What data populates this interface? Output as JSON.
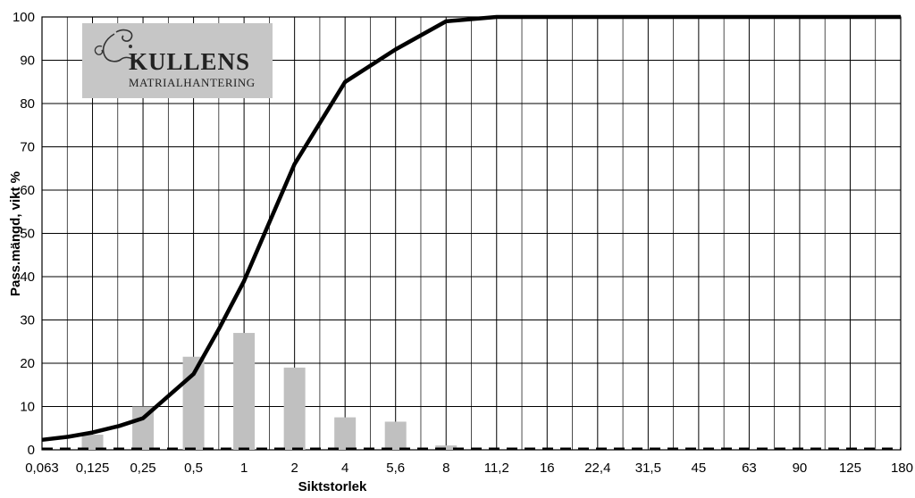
{
  "chart_data": {
    "type": "line",
    "xlabel": "Siktstorlek",
    "ylabel": "Pass.mängd, vikt %",
    "ylim": [
      0,
      100
    ],
    "yticks": [
      "0",
      "10",
      "20",
      "30",
      "40",
      "50",
      "60",
      "70",
      "80",
      "90",
      "100"
    ],
    "categories": [
      "0,063",
      "0,125",
      "0,25",
      "0,5",
      "1",
      "2",
      "4",
      "5,6",
      "8",
      "11,2",
      "16",
      "22,4",
      "31,5",
      "45",
      "63",
      "90",
      "125",
      "180"
    ],
    "grid": true,
    "series": [
      {
        "type": "line",
        "points": [
          {
            "x": 0.063,
            "y": 2.3
          },
          {
            "x": 0.09,
            "y": 3.0
          },
          {
            "x": 0.125,
            "y": 4.0
          },
          {
            "x": 0.18,
            "y": 5.5
          },
          {
            "x": 0.25,
            "y": 7.3
          },
          {
            "x": 0.5,
            "y": 17.5
          },
          {
            "x": 0.71,
            "y": 28
          },
          {
            "x": 1,
            "y": 39
          },
          {
            "x": 2,
            "y": 66
          },
          {
            "x": 4,
            "y": 85
          },
          {
            "x": 5.6,
            "y": 92.5
          },
          {
            "x": 8,
            "y": 99
          },
          {
            "x": 11.2,
            "y": 100
          },
          {
            "x": 180,
            "y": 100
          }
        ]
      },
      {
        "type": "bar",
        "points": [
          {
            "x": 0.125,
            "y": 3.5
          },
          {
            "x": 0.25,
            "y": 10
          },
          {
            "x": 0.5,
            "y": 21.5
          },
          {
            "x": 1,
            "y": 27
          },
          {
            "x": 2,
            "y": 19
          },
          {
            "x": 4,
            "y": 7.5
          },
          {
            "x": 5.6,
            "y": 6.5
          },
          {
            "x": 8,
            "y": 1
          }
        ]
      },
      {
        "type": "dashed-line",
        "points": [
          {
            "x": 0.063,
            "y": 0
          },
          {
            "x": 180,
            "y": 0
          }
        ]
      }
    ]
  },
  "logo": {
    "name": "KULLENS",
    "subtitle": "MATRIALHANTERING"
  },
  "colors": {
    "line": "#000000",
    "bars": "#c0c0c0",
    "grid": "#000000",
    "logo_bg": "#c6c6c6"
  }
}
